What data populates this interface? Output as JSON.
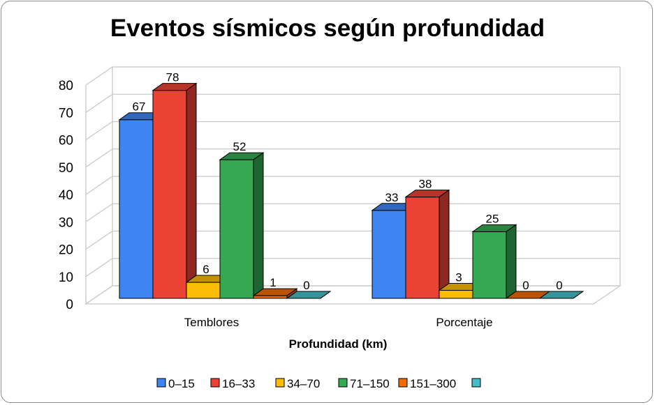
{
  "chart_data": {
    "type": "bar",
    "title": "Eventos sísmicos según profundidad",
    "xlabel": "Profundidad (km)",
    "ylabel": "",
    "ylim": [
      0,
      80
    ],
    "yticks": [
      0,
      10,
      20,
      30,
      40,
      50,
      60,
      70,
      80
    ],
    "categories": [
      "Temblores",
      "Porcentaje"
    ],
    "grid": true,
    "style": "3d-clustered-column",
    "legend_position": "bottom",
    "series": [
      {
        "name": "0–15",
        "color": "#3f85f2",
        "values": [
          67,
          33
        ]
      },
      {
        "name": "16–33",
        "color": "#ea4335",
        "values": [
          78,
          38
        ]
      },
      {
        "name": "34–70",
        "color": "#fbbc04",
        "values": [
          6,
          3
        ]
      },
      {
        "name": "71–150",
        "color": "#34a853",
        "values": [
          52,
          25
        ]
      },
      {
        "name": "151–300",
        "color": "#f06c00",
        "values": [
          1,
          0
        ]
      },
      {
        "name": "",
        "color": "#46bdc6",
        "values": [
          0,
          0
        ]
      }
    ]
  }
}
